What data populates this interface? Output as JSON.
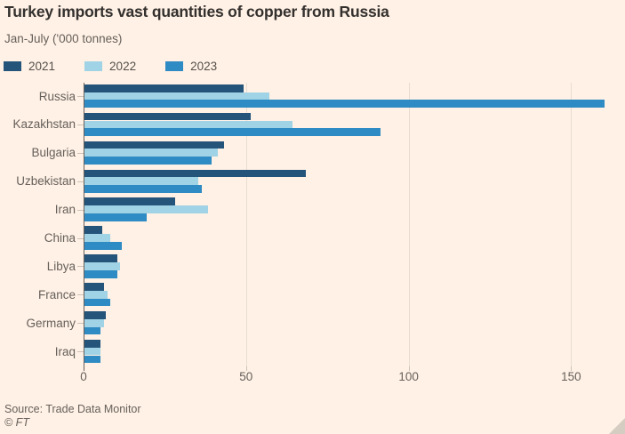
{
  "header": {
    "title": "Turkey imports vast quantities of copper from Russia",
    "subtitle": "Jan-July ('000 tonnes)"
  },
  "legend": [
    {
      "label": "2021",
      "color": "#25547B"
    },
    {
      "label": "2022",
      "color": "#A0D3E5"
    },
    {
      "label": "2023",
      "color": "#2E8BC3"
    }
  ],
  "chart_data": {
    "type": "bar",
    "orientation": "horizontal",
    "title": "Turkey imports vast quantities of copper from Russia",
    "subtitle": "Jan-July ('000 tonnes)",
    "unit": "'000 tonnes",
    "categories": [
      "Russia",
      "Kazakhstan",
      "Bulgaria",
      "Uzbekistan",
      "Iran",
      "China",
      "Libya",
      "France",
      "Germany",
      "Iraq"
    ],
    "series": [
      {
        "name": "2021",
        "color": "#25547B",
        "values": [
          49,
          51,
          43,
          68,
          28,
          5.5,
          10,
          6,
          6.5,
          5
        ]
      },
      {
        "name": "2022",
        "color": "#A0D3E5",
        "values": [
          57,
          64,
          41,
          35,
          38,
          8,
          11,
          7,
          6,
          5
        ]
      },
      {
        "name": "2023",
        "color": "#2E8BC3",
        "values": [
          160,
          91,
          39,
          36,
          19,
          11.5,
          10,
          8,
          5,
          5
        ]
      }
    ],
    "x_ticks": [
      0,
      50,
      100,
      150
    ],
    "xlim": [
      0,
      166.5
    ],
    "grid": "vertical-gridlines",
    "legend_position": "top-left"
  },
  "footer": {
    "source": "Source: Trade Data Monitor",
    "credit": "© FT"
  },
  "colors": {
    "background": "#FFF1E5",
    "title_text": "#33302E",
    "muted_text": "#66605B",
    "axis_line": "#66605B",
    "gridline": "#E7DCD0",
    "tick": "#CCC2B7",
    "series_2021": "#25547B",
    "series_2022": "#A0D3E5",
    "series_2023": "#2E8BC3"
  }
}
